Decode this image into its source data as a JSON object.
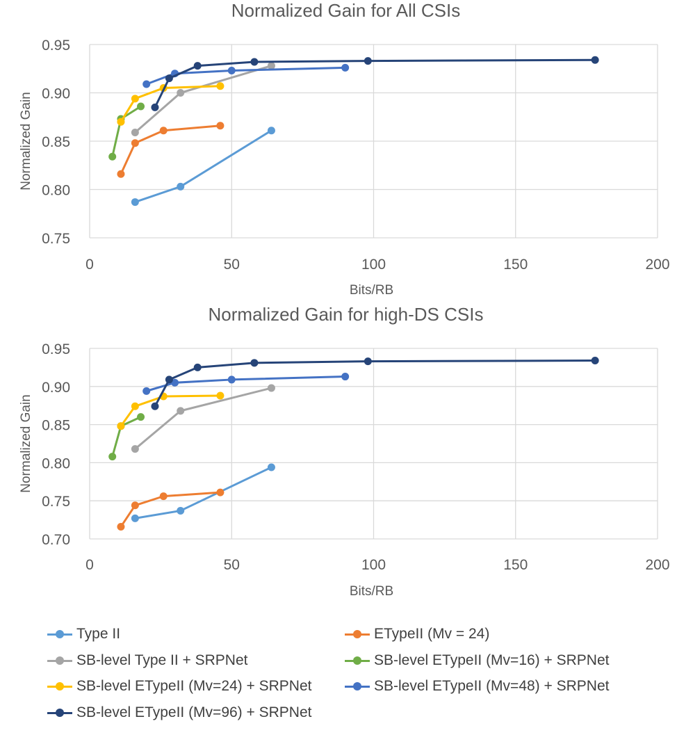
{
  "xlabel": "Bits/RB",
  "ylabel": "Normalized Gain",
  "series_styles": [
    {
      "name": "Type II",
      "color": "#5B9BD5"
    },
    {
      "name": "ETypeII (Mv = 24)",
      "color": "#ED7D31"
    },
    {
      "name": "SB-level Type II + SRPNet",
      "color": "#A5A5A5"
    },
    {
      "name": "SB-level ETypeII (Mv=16) + SRPNet",
      "color": "#70AD47"
    },
    {
      "name": "SB-level ETypeII (Mv=24) + SRPNet",
      "color": "#FFC000"
    },
    {
      "name": "SB-level ETypeII (Mv=48) + SRPNet",
      "color": "#4472C4"
    },
    {
      "name": "SB-level ETypeII (Mv=96) + SRPNet",
      "color": "#264478"
    }
  ],
  "chart_data": [
    {
      "type": "line",
      "title": "Normalized Gain for All CSIs",
      "xlabel": "Bits/RB",
      "ylabel": "Normalized Gain",
      "xlim": [
        0,
        200
      ],
      "ylim": [
        0.75,
        0.95
      ],
      "xticks": [
        "0",
        "50",
        "100",
        "150",
        "200"
      ],
      "yticks": [
        "0.75",
        "0.80",
        "0.85",
        "0.90",
        "0.95"
      ],
      "series": [
        {
          "name": "Type II",
          "x": [
            16,
            32,
            64
          ],
          "y": [
            0.787,
            0.803,
            0.861
          ]
        },
        {
          "name": "ETypeII (Mv = 24)",
          "x": [
            11,
            16,
            26,
            46
          ],
          "y": [
            0.816,
            0.848,
            0.861,
            0.866
          ]
        },
        {
          "name": "SB-level Type II + SRPNet",
          "x": [
            16,
            32,
            64
          ],
          "y": [
            0.859,
            0.9,
            0.928
          ]
        },
        {
          "name": "SB-level ETypeII (Mv=16) + SRPNet",
          "x": [
            8,
            11,
            18
          ],
          "y": [
            0.834,
            0.873,
            0.886
          ]
        },
        {
          "name": "SB-level ETypeII (Mv=24) + SRPNet",
          "x": [
            11,
            16,
            26,
            46
          ],
          "y": [
            0.87,
            0.894,
            0.905,
            0.907
          ]
        },
        {
          "name": "SB-level ETypeII (Mv=48) + SRPNet",
          "x": [
            20,
            30,
            50,
            90
          ],
          "y": [
            0.909,
            0.92,
            0.923,
            0.926
          ]
        },
        {
          "name": "SB-level ETypeII (Mv=96) + SRPNet",
          "x": [
            23,
            28,
            38,
            58,
            98,
            178
          ],
          "y": [
            0.885,
            0.915,
            0.928,
            0.932,
            0.933,
            0.934
          ]
        }
      ]
    },
    {
      "type": "line",
      "title": "Normalized Gain for high-DS CSIs",
      "xlabel": "Bits/RB",
      "ylabel": "Normalized Gain",
      "xlim": [
        0,
        200
      ],
      "ylim": [
        0.7,
        0.95
      ],
      "xticks": [
        "0",
        "50",
        "100",
        "150",
        "200"
      ],
      "yticks": [
        "0.70",
        "0.75",
        "0.80",
        "0.85",
        "0.90",
        "0.95"
      ],
      "series": [
        {
          "name": "Type II",
          "x": [
            16,
            32,
            64
          ],
          "y": [
            0.727,
            0.737,
            0.794
          ]
        },
        {
          "name": "ETypeII (Mv = 24)",
          "x": [
            11,
            16,
            26,
            46
          ],
          "y": [
            0.716,
            0.744,
            0.756,
            0.761
          ]
        },
        {
          "name": "SB-level Type II + SRPNet",
          "x": [
            16,
            32,
            64
          ],
          "y": [
            0.818,
            0.868,
            0.898
          ]
        },
        {
          "name": "SB-level ETypeII (Mv=16) + SRPNet",
          "x": [
            8,
            11,
            18
          ],
          "y": [
            0.808,
            0.848,
            0.86
          ]
        },
        {
          "name": "SB-level ETypeII (Mv=24) + SRPNet",
          "x": [
            11,
            16,
            26,
            46
          ],
          "y": [
            0.848,
            0.874,
            0.887,
            0.888
          ]
        },
        {
          "name": "SB-level ETypeII (Mv=48) + SRPNet",
          "x": [
            20,
            30,
            50,
            90
          ],
          "y": [
            0.894,
            0.905,
            0.909,
            0.913
          ]
        },
        {
          "name": "SB-level ETypeII (Mv=96) + SRPNet",
          "x": [
            23,
            28,
            38,
            58,
            98,
            178
          ],
          "y": [
            0.874,
            0.909,
            0.925,
            0.931,
            0.933,
            0.934
          ]
        }
      ]
    }
  ]
}
